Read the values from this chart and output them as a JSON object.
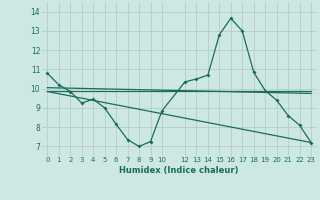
{
  "xlabel": "Humidex (Indice chaleur)",
  "ylabel": "",
  "bg_color": "#cde8e2",
  "line_color": "#1a6b5e",
  "grid_color": "#b0c8c0",
  "xlim": [
    -0.5,
    23.5
  ],
  "ylim": [
    6.5,
    14.5
  ],
  "xticks": [
    0,
    1,
    2,
    3,
    4,
    5,
    6,
    7,
    8,
    9,
    10,
    12,
    13,
    14,
    15,
    16,
    17,
    18,
    19,
    20,
    21,
    22,
    23
  ],
  "yticks": [
    7,
    8,
    9,
    10,
    11,
    12,
    13,
    14
  ],
  "main_x": [
    0,
    1,
    2,
    3,
    4,
    5,
    6,
    7,
    8,
    9,
    10,
    12,
    13,
    14,
    15,
    16,
    17,
    18,
    19,
    20,
    21,
    22,
    23
  ],
  "main_y": [
    10.8,
    10.2,
    9.85,
    9.25,
    9.45,
    9.0,
    8.15,
    7.35,
    7.0,
    7.25,
    8.85,
    10.35,
    10.5,
    10.7,
    12.8,
    13.65,
    13.0,
    10.85,
    9.9,
    9.4,
    8.6,
    8.1,
    7.2
  ],
  "line1_x": [
    0,
    23
  ],
  "line1_y": [
    10.05,
    9.75
  ],
  "line2_x": [
    0,
    23
  ],
  "line2_y": [
    9.85,
    7.2
  ],
  "line3_x": [
    0,
    23
  ],
  "line3_y": [
    9.9,
    9.9
  ]
}
